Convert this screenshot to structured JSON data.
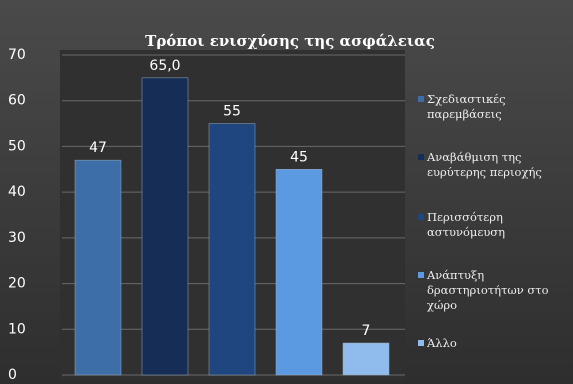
{
  "chart_data": {
    "type": "bar",
    "title": "Τρόποι ενισχύσης της ασφάλειας",
    "series": [
      {
        "name": "Σχεδιαστικές παρεμβάσεις",
        "color": "#3d6ea8",
        "values": [
          47
        ]
      },
      {
        "name": "Αναβάθμιση της ευρύτερης περιοχής",
        "color": "#162d55",
        "values": [
          65.0
        ],
        "value_labels": [
          "65,0"
        ]
      },
      {
        "name": "Περισσότερη αστυνόμευση",
        "color": "#1f467f",
        "values": [
          55
        ]
      },
      {
        "name": "Ανάπτυξη δραστηριοτήτων στο χώρο",
        "color": "#5b9ae0",
        "values": [
          45
        ]
      },
      {
        "name": "Άλλο",
        "color": "#8fbcec",
        "values": [
          7
        ]
      }
    ],
    "ylim": [
      0,
      70
    ],
    "yticks": [
      0,
      10,
      20,
      30,
      40,
      50,
      60,
      70
    ],
    "grid": true
  }
}
